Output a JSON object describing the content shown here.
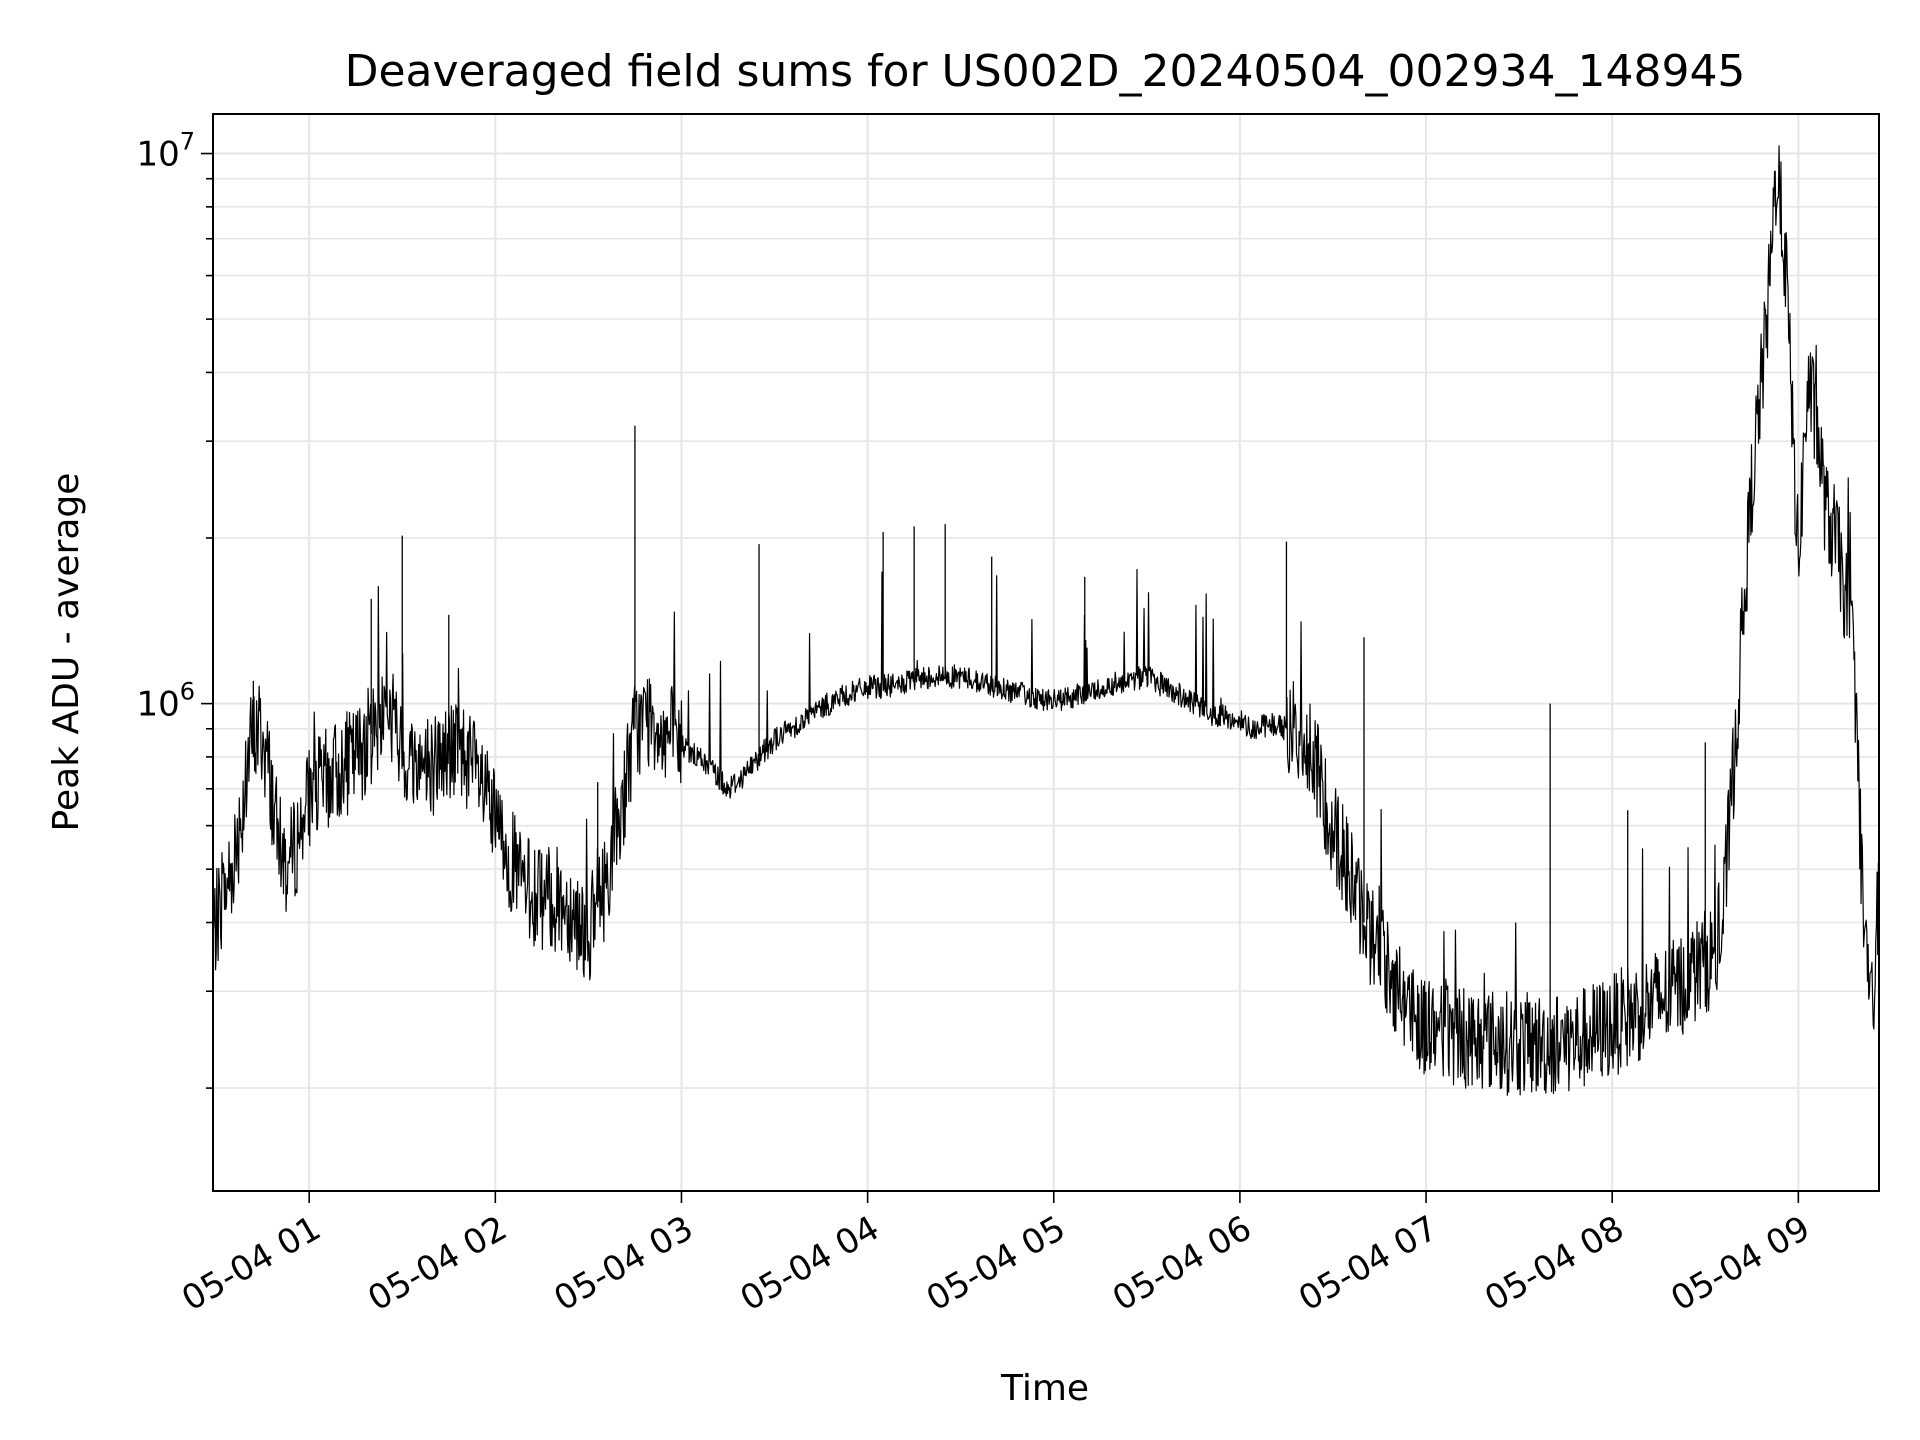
{
  "chart_data": {
    "type": "line",
    "title": "Deaveraged field sums for US002D_20240504_002934_148945",
    "xlabel": "Time",
    "ylabel": "Peak ADU - average",
    "yscale": "log",
    "xlim": [
      "05-04 00:29",
      "05-04 09:26"
    ],
    "ylim": [
      130000,
      11800000
    ],
    "grid": true,
    "line_color": "#000000",
    "x_ticks": [
      "05-04 01",
      "05-04 02",
      "05-04 03",
      "05-04 04",
      "05-04 05",
      "05-04 06",
      "05-04 07",
      "05-04 08",
      "05-04 09"
    ],
    "y_ticks": [
      {
        "base": "10",
        "exp": "6"
      },
      {
        "base": "10",
        "exp": "7"
      }
    ],
    "series": [
      {
        "x": [
          "05-04 00:29",
          "05-04 00:32",
          "05-04 00:35",
          "05-04 00:38",
          "05-04 00:41",
          "05-04 00:44",
          "05-04 00:47",
          "05-04 00:50",
          "05-04 00:53",
          "05-04 00:56",
          "05-04 01:00",
          "05-04 01:05",
          "05-04 01:10",
          "05-04 01:15",
          "05-04 01:20",
          "05-04 01:25",
          "05-04 01:30",
          "05-04 01:35",
          "05-04 01:40",
          "05-04 01:45",
          "05-04 01:50",
          "05-04 01:55",
          "05-04 02:00",
          "05-04 02:05",
          "05-04 02:10",
          "05-04 02:15",
          "05-04 02:20",
          "05-04 02:25",
          "05-04 02:30",
          "05-04 02:35",
          "05-04 02:40",
          "05-04 02:45",
          "05-04 02:50",
          "05-04 02:55",
          "05-04 03:00",
          "05-04 03:05",
          "05-04 03:10",
          "05-04 03:15",
          "05-04 03:20",
          "05-04 03:25",
          "05-04 03:30",
          "05-04 03:40",
          "05-04 03:50",
          "05-04 04:00",
          "05-04 04:10",
          "05-04 04:20",
          "05-04 04:30",
          "05-04 04:40",
          "05-04 04:50",
          "05-04 05:00",
          "05-04 05:10",
          "05-04 05:20",
          "05-04 05:30",
          "05-04 05:40",
          "05-04 05:50",
          "05-04 06:00",
          "05-04 06:05",
          "05-04 06:10",
          "05-04 06:15",
          "05-04 06:20",
          "05-04 06:25",
          "05-04 06:30",
          "05-04 06:35",
          "05-04 06:40",
          "05-04 06:45",
          "05-04 06:50",
          "05-04 06:55",
          "05-04 07:00",
          "05-04 07:10",
          "05-04 07:20",
          "05-04 07:30",
          "05-04 07:40",
          "05-04 07:50",
          "05-04 08:00",
          "05-04 08:10",
          "05-04 08:20",
          "05-04 08:30",
          "05-04 08:35",
          "05-04 08:40",
          "05-04 08:45",
          "05-04 08:50",
          "05-04 08:53",
          "05-04 08:56",
          "05-04 09:00",
          "05-04 09:03",
          "05-04 09:06",
          "05-04 09:09",
          "05-04 09:12",
          "05-04 09:15",
          "05-04 09:18",
          "05-04 09:21",
          "05-04 09:24",
          "05-04 09:26"
        ],
        "y": [
          380000,
          440000,
          500000,
          620000,
          840000,
          900000,
          760000,
          560000,
          500000,
          560000,
          680000,
          720000,
          760000,
          800000,
          880000,
          1000000,
          800000,
          780000,
          780000,
          820000,
          820000,
          720000,
          600000,
          520000,
          460000,
          440000,
          440000,
          420000,
          380000,
          460000,
          620000,
          900000,
          950000,
          880000,
          840000,
          800000,
          760000,
          700000,
          740000,
          800000,
          860000,
          940000,
          1020000,
          1070000,
          1080000,
          1120000,
          1120000,
          1080000,
          1040000,
          1010000,
          1040000,
          1090000,
          1120000,
          1040000,
          960000,
          930000,
          900000,
          920000,
          900000,
          890000,
          740000,
          600000,
          500000,
          400000,
          360000,
          310000,
          280000,
          260000,
          250000,
          245000,
          240000,
          240000,
          245000,
          260000,
          280000,
          300000,
          340000,
          360000,
          900000,
          2500000,
          5000000,
          9500000,
          6200000,
          1800000,
          3800000,
          3200000,
          2200000,
          2000000,
          1600000,
          1200000,
          400000,
          270000,
          480000
        ]
      }
    ],
    "spikes": [
      {
        "x": "05-04 00:42",
        "y": 1100000
      },
      {
        "x": "05-04 01:20",
        "y": 1550000
      },
      {
        "x": "05-04 01:30",
        "y": 2020000
      },
      {
        "x": "05-04 01:45",
        "y": 1450000
      },
      {
        "x": "05-04 02:33",
        "y": 720000
      },
      {
        "x": "05-04 02:45",
        "y": 3200000
      },
      {
        "x": "05-04 03:25",
        "y": 1950000
      },
      {
        "x": "05-04 04:05",
        "y": 2050000
      },
      {
        "x": "05-04 04:15",
        "y": 2100000
      },
      {
        "x": "05-04 04:25",
        "y": 2120000
      },
      {
        "x": "05-04 04:40",
        "y": 1850000
      },
      {
        "x": "05-04 05:10",
        "y": 1700000
      },
      {
        "x": "05-04 06:15",
        "y": 1970000
      },
      {
        "x": "05-04 06:40",
        "y": 1320000
      },
      {
        "x": "05-04 07:40",
        "y": 1000000
      },
      {
        "x": "05-04 08:05",
        "y": 640000
      },
      {
        "x": "05-04 08:30",
        "y": 850000
      }
    ]
  }
}
